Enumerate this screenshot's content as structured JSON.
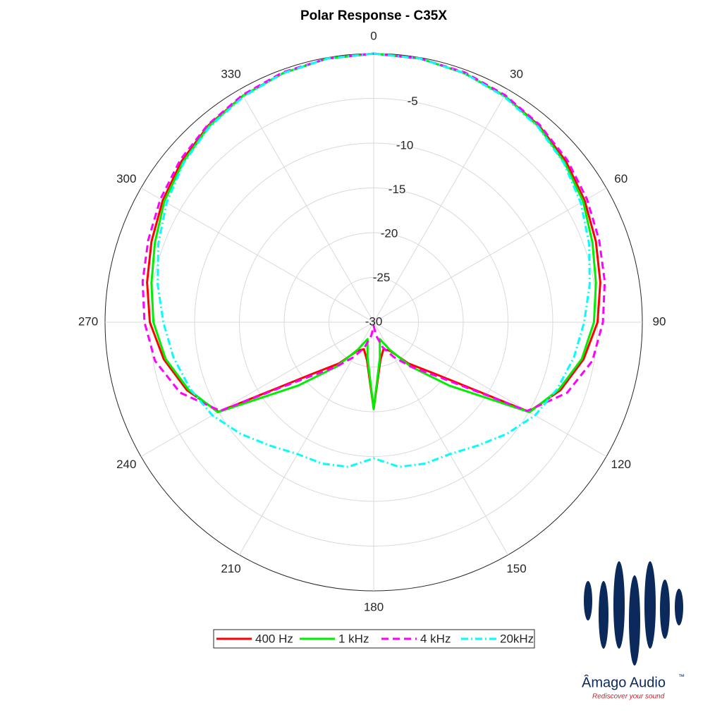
{
  "chart_data": {
    "type": "polar",
    "title": "Polar Response - C35X",
    "theta": [
      0,
      10,
      20,
      30,
      40,
      50,
      60,
      70,
      80,
      90,
      100,
      110,
      120,
      130,
      140,
      150,
      160,
      170,
      180,
      190,
      200,
      210,
      220,
      230,
      240,
      250,
      260,
      270,
      280,
      290,
      300,
      310,
      320,
      330,
      340,
      350
    ],
    "series": [
      {
        "name": "400 Hz",
        "color": "#ff0000",
        "dash": "solid",
        "values": [
          0,
          -0.1,
          -0.4,
          -0.8,
          -1.3,
          -2,
          -2.8,
          -3.6,
          -4.3,
          -5,
          -6.2,
          -7.8,
          -10,
          -21,
          -24,
          -26.3,
          -26.8,
          -25.7,
          -20.3,
          -25.7,
          -26.8,
          -26.3,
          -24,
          -21,
          -10,
          -7.8,
          -6.2,
          -5,
          -4.3,
          -3.6,
          -2.8,
          -2,
          -1.3,
          -0.8,
          -0.4,
          -0.1
        ]
      },
      {
        "name": "1 kHz",
        "color": "#00ee00",
        "dash": "solid",
        "values": [
          0,
          -0.1,
          -0.4,
          -0.8,
          -1.4,
          -2.2,
          -3,
          -4,
          -4.8,
          -5.4,
          -6.4,
          -8,
          -9.9,
          -19,
          -23.5,
          -26.5,
          -28,
          -26,
          -20.3,
          -26,
          -28,
          -26.5,
          -23.5,
          -19,
          -9.9,
          -8,
          -6.4,
          -5.4,
          -4.8,
          -4,
          -3,
          -2.2,
          -1.4,
          -0.8,
          -0.4,
          -0.1
        ]
      },
      {
        "name": "4 kHz",
        "color": "#ff00ff",
        "dash": "dashed",
        "values": [
          0,
          -0.1,
          -0.3,
          -0.7,
          -1.2,
          -1.8,
          -2.5,
          -3.2,
          -3.8,
          -4.4,
          -5.2,
          -7,
          -10.2,
          -20.5,
          -23.5,
          -25.5,
          -27,
          -28.5,
          -29.6,
          -28.5,
          -27,
          -25.5,
          -23.5,
          -20.5,
          -10.2,
          -7,
          -5.2,
          -4.4,
          -3.8,
          -3.2,
          -2.5,
          -1.8,
          -1.2,
          -0.7,
          -0.3,
          -0.1
        ]
      },
      {
        "name": "20kHz",
        "color": "#00ffff",
        "dash": "dashdot",
        "values": [
          0,
          -0.1,
          -0.4,
          -0.9,
          -1.5,
          -2.3,
          -3.3,
          -4.4,
          -5.5,
          -6.5,
          -7.3,
          -8.2,
          -9.2,
          -10.6,
          -12,
          -13,
          -13.2,
          -13.6,
          -14.8,
          -13.6,
          -13.2,
          -13,
          -12,
          -10.6,
          -9.2,
          -8.2,
          -7.3,
          -6.5,
          -5.5,
          -4.4,
          -3.3,
          -2.3,
          -1.5,
          -0.9,
          -0.4,
          -0.1
        ]
      }
    ],
    "rlim": [
      -30,
      0
    ],
    "rticks": [
      -30,
      -25,
      -20,
      -15,
      -10,
      -5
    ],
    "thetaticks": [
      0,
      30,
      60,
      90,
      120,
      150,
      180,
      210,
      240,
      270,
      300,
      330
    ],
    "theta_zero": "top",
    "theta_direction": "clockwise",
    "grid": true,
    "legend": "bottom"
  },
  "logo": {
    "name": "Âmago Audio",
    "trademark": "™",
    "tagline": "Rediscover your sound"
  }
}
